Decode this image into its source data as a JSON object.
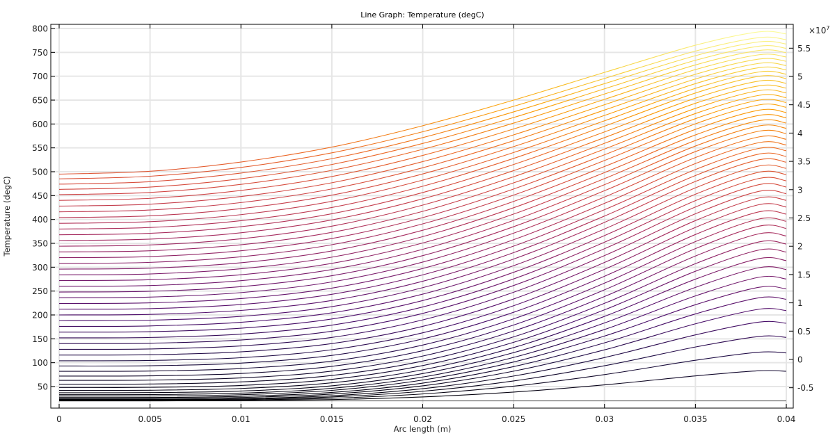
{
  "chart_data": {
    "type": "line",
    "title": "Line Graph: Temperature (degC)",
    "xlabel": "Arc length (m)",
    "ylabel": "Temperature (degC)",
    "xlim": [
      0,
      0.04
    ],
    "ylim": [
      10,
      805
    ],
    "grid": true,
    "x_ticks": [
      "0",
      "0.005",
      "0.01",
      "0.015",
      "0.02",
      "0.025",
      "0.03",
      "0.035",
      "0.04"
    ],
    "y_ticks": [
      "50",
      "100",
      "150",
      "200",
      "250",
      "300",
      "350",
      "400",
      "450",
      "500",
      "550",
      "600",
      "650",
      "700",
      "750",
      "800"
    ],
    "colorbar": {
      "multiplier": "×10",
      "exponent": "7",
      "ticks": [
        "-0.5",
        "0",
        "0.5",
        "1",
        "1.5",
        "2",
        "2.5",
        "3",
        "3.5",
        "4",
        "4.5",
        "5",
        "5.5"
      ],
      "colormap": [
        "#000004",
        "#1b0c41",
        "#4a0c6b",
        "#781c6d",
        "#a52c60",
        "#cf4446",
        "#ed6925",
        "#fb9b06",
        "#f7d13d",
        "#fcffa4"
      ]
    },
    "x": [
      0,
      0.005,
      0.01,
      0.015,
      0.02,
      0.025,
      0.03,
      0.035,
      0.0385,
      0.04
    ],
    "shape_profile": [
      0,
      0.02,
      0.085,
      0.19,
      0.34,
      0.52,
      0.715,
      0.906,
      1.0,
      0.98
    ],
    "series_start_values": [
      20,
      20,
      21,
      22,
      23,
      25,
      27,
      30,
      33,
      37,
      42,
      48,
      55,
      63,
      72,
      82,
      93,
      104,
      116,
      128,
      140,
      152,
      164,
      176,
      188,
      200,
      212,
      224,
      236,
      248,
      260,
      272,
      284,
      296,
      308,
      320,
      332,
      344,
      356,
      368,
      380,
      392,
      404,
      416,
      428,
      440,
      452,
      463,
      474,
      485,
      495
    ],
    "series_peak_values": [
      20,
      83,
      122,
      155,
      185,
      212,
      236,
      258,
      279,
      299,
      318,
      336,
      353,
      370,
      386,
      401,
      416,
      431,
      445,
      459,
      473,
      486,
      499,
      512,
      525,
      537,
      549,
      561,
      573,
      585,
      596,
      607,
      618,
      629,
      640,
      650,
      660,
      670,
      680,
      690,
      700,
      709,
      718,
      727,
      736,
      745,
      754,
      763,
      772,
      781,
      793
    ]
  }
}
